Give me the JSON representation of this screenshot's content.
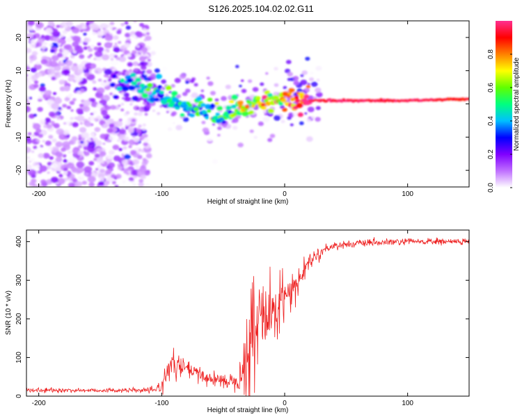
{
  "figure": {
    "title": "S126.2025.104.02.02.G11"
  },
  "chart_data": [
    {
      "type": "heatmap",
      "xlabel": "Height of straight line (km)",
      "ylabel": "Frequency (Hz)",
      "xlim": [
        -210,
        150
      ],
      "ylim": [
        -25,
        25
      ],
      "xticks": [
        -200,
        -100,
        0,
        100
      ],
      "yticks": [
        -20,
        -10,
        0,
        10,
        20
      ],
      "grid": false,
      "colorbar": {
        "label": "Normalized spectral amplitude",
        "range": [
          0,
          1
        ],
        "ticks": [
          0,
          0.2,
          0.4,
          0.6,
          0.8
        ],
        "tick_labels": [
          "0.0",
          "0.2",
          "0.4",
          "0.6",
          "0.8"
        ],
        "colormap": [
          "#ffffff",
          "#c070ff",
          "#8000ff",
          "#0000ff",
          "#00c0ff",
          "#00ff80",
          "#60ff00",
          "#ffff00",
          "#ff8000",
          "#ff0000",
          "#ff3090"
        ]
      },
      "ridge": {
        "x": [
          -140,
          -120,
          -100,
          -90,
          -80,
          -70,
          -60,
          -50,
          -40,
          -30,
          -20,
          -10,
          0,
          10,
          30,
          60,
          100,
          150
        ],
        "frequency": [
          5,
          5,
          3,
          0,
          -1,
          -2,
          -2,
          -3,
          -1,
          0,
          0,
          1,
          2,
          1,
          1,
          1,
          1,
          1.5
        ],
        "amplitude": [
          0.3,
          0.35,
          0.4,
          0.45,
          0.45,
          0.45,
          0.45,
          0.5,
          0.55,
          0.6,
          0.65,
          0.7,
          0.75,
          0.85,
          0.95,
          0.95,
          0.95,
          0.9
        ]
      },
      "noise_region": {
        "x_from": -210,
        "x_to": -110,
        "amplitude": 0.15
      }
    },
    {
      "type": "line",
      "xlabel": "Height of straight line (km)",
      "ylabel": "SNR (10 * v/v)",
      "xlim": [
        -210,
        150
      ],
      "ylim": [
        0,
        430
      ],
      "xticks": [
        -200,
        -100,
        0,
        100
      ],
      "yticks": [
        0,
        100,
        200,
        300,
        400
      ],
      "grid": false,
      "series": [
        {
          "color": "#ee2020",
          "x": [
            -210,
            -150,
            -105,
            -100,
            -95,
            -90,
            -80,
            -70,
            -60,
            -50,
            -40,
            -35,
            -30,
            -25,
            -20,
            -15,
            -10,
            -5,
            0,
            5,
            10,
            15,
            20,
            30,
            40,
            60,
            100,
            150
          ],
          "mean": [
            15,
            15,
            15,
            30,
            70,
            80,
            70,
            55,
            45,
            40,
            40,
            70,
            110,
            160,
            200,
            200,
            220,
            240,
            265,
            280,
            290,
            320,
            350,
            375,
            390,
            395,
            400,
            400
          ],
          "spread": [
            6,
            6,
            7,
            25,
            35,
            35,
            30,
            25,
            20,
            20,
            25,
            60,
            90,
            110,
            120,
            100,
            80,
            60,
            50,
            45,
            40,
            35,
            20,
            15,
            12,
            10,
            10,
            10
          ]
        }
      ]
    }
  ]
}
